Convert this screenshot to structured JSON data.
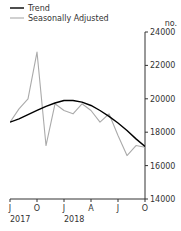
{
  "chart_data": {
    "type": "line",
    "y_label": "no.",
    "categories": [
      "J",
      null,
      null,
      "O",
      null,
      null,
      "J",
      null,
      null,
      "A",
      null,
      null,
      "J",
      null,
      null,
      "O"
    ],
    "series": [
      {
        "name": "Trend",
        "color": "#000000",
        "values": [
          18600,
          18800,
          19050,
          19300,
          19550,
          19750,
          19900,
          19900,
          19800,
          19600,
          19300,
          18950,
          18550,
          18100,
          17600,
          17150
        ]
      },
      {
        "name": "Seasonally Adjusted",
        "color": "#aaaaaa",
        "values": [
          18600,
          19400,
          20000,
          22800,
          17200,
          19700,
          19300,
          19100,
          19700,
          19300,
          18600,
          19100,
          17800,
          16600,
          17200,
          17100
        ]
      }
    ],
    "annotations": [
      {
        "text": "2017",
        "x": 0
      },
      {
        "text": "2018",
        "x": 6
      }
    ],
    "ylim": [
      14000,
      24000
    ],
    "yticks": [
      14000,
      16000,
      18000,
      20000,
      22000,
      24000
    ],
    "grid": false,
    "legend": "upper left"
  }
}
